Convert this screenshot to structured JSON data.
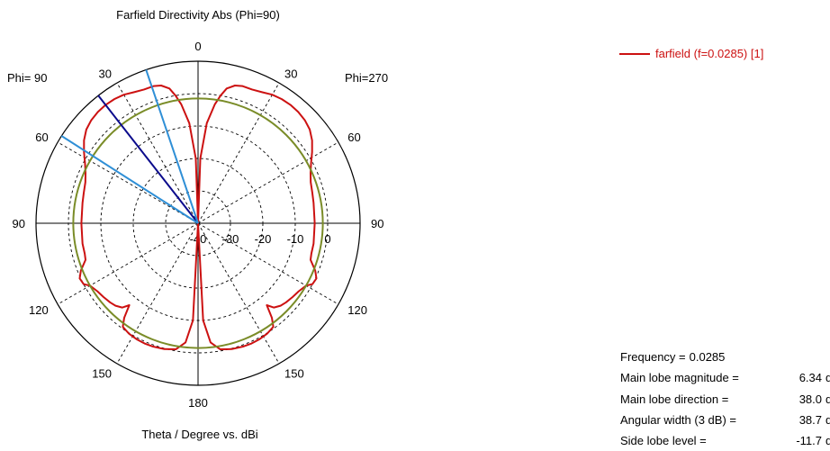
{
  "chart_data": {
    "type": "polar",
    "title": "Farfield Directivity Abs (Phi=90)",
    "xlabel": "Theta / Degree vs. dBi",
    "left_label": "Phi= 90",
    "right_label": "Phi=270",
    "angle_ticks": [
      {
        "angle": 0,
        "label": "0"
      },
      {
        "angle": 30,
        "label": "30"
      },
      {
        "angle": 60,
        "label": "60"
      },
      {
        "angle": 90,
        "label": "90"
      },
      {
        "angle": 120,
        "label": "120"
      },
      {
        "angle": 150,
        "label": "150"
      },
      {
        "angle": 180,
        "label": "180"
      },
      {
        "angle": 210,
        "label": "150"
      },
      {
        "angle": 240,
        "label": "120"
      },
      {
        "angle": 270,
        "label": "90"
      },
      {
        "angle": 300,
        "label": "60"
      },
      {
        "angle": 330,
        "label": "30"
      }
    ],
    "radial_ticks": [
      {
        "value": -40,
        "label": "-40"
      },
      {
        "value": -30,
        "label": "-30"
      },
      {
        "value": -20,
        "label": "-20"
      },
      {
        "value": -10,
        "label": "-10"
      },
      {
        "value": 0,
        "label": "0"
      }
    ],
    "rlim": [
      -40,
      10
    ],
    "grid": true,
    "legend_position": "top-right",
    "series": [
      {
        "name": "farfield (f=0.0285) [1]",
        "color": "#cc1111",
        "points": [
          [
            0,
            -40
          ],
          [
            2,
            -20
          ],
          [
            5,
            -9
          ],
          [
            8,
            -3
          ],
          [
            10,
            0
          ],
          [
            12,
            2.5
          ],
          [
            15,
            4
          ],
          [
            18,
            4.5
          ],
          [
            22,
            4.5
          ],
          [
            26,
            5
          ],
          [
            30,
            5.8
          ],
          [
            34,
            6.2
          ],
          [
            38,
            6.34
          ],
          [
            42,
            6.2
          ],
          [
            46,
            5.8
          ],
          [
            50,
            5
          ],
          [
            54,
            3.5
          ],
          [
            58,
            1.5
          ],
          [
            62,
            -0.5
          ],
          [
            66,
            -2
          ],
          [
            70,
            -3
          ],
          [
            75,
            -3.5
          ],
          [
            80,
            -3.8
          ],
          [
            90,
            -4
          ],
          [
            100,
            -3.8
          ],
          [
            105,
            -3.8
          ],
          [
            108,
            -3.5
          ],
          [
            112,
            -1
          ],
          [
            115,
            0.3
          ],
          [
            118,
            0
          ],
          [
            120,
            -1.5
          ],
          [
            124,
            -2.5
          ],
          [
            128,
            -3
          ],
          [
            132,
            -3.5
          ],
          [
            135,
            -4
          ],
          [
            138,
            -5
          ],
          [
            140,
            -7
          ],
          [
            142,
            -3
          ],
          [
            144,
            -0.5
          ],
          [
            148,
            0.2
          ],
          [
            152,
            0.5
          ],
          [
            156,
            0.6
          ],
          [
            160,
            0.5
          ],
          [
            165,
            0.2
          ],
          [
            170,
            -0.5
          ],
          [
            174,
            -3
          ],
          [
            177,
            -10
          ],
          [
            180,
            -40
          ],
          [
            183,
            -10
          ],
          [
            186,
            -3
          ],
          [
            190,
            -0.5
          ],
          [
            195,
            0.2
          ],
          [
            200,
            0.5
          ],
          [
            204,
            0.6
          ],
          [
            208,
            0.5
          ],
          [
            212,
            0.2
          ],
          [
            216,
            -0.5
          ],
          [
            218,
            -3
          ],
          [
            220,
            -7
          ],
          [
            222,
            -5
          ],
          [
            225,
            -4
          ],
          [
            228,
            -3.5
          ],
          [
            232,
            -3
          ],
          [
            236,
            -2.5
          ],
          [
            240,
            -1.5
          ],
          [
            242,
            0
          ],
          [
            245,
            0.3
          ],
          [
            248,
            -1
          ],
          [
            252,
            -3.5
          ],
          [
            255,
            -3.8
          ],
          [
            260,
            -3.8
          ],
          [
            270,
            -4
          ],
          [
            280,
            -3.8
          ],
          [
            285,
            -3.5
          ],
          [
            290,
            -3
          ],
          [
            294,
            -2
          ],
          [
            298,
            -0.5
          ],
          [
            302,
            1.5
          ],
          [
            306,
            3.5
          ],
          [
            310,
            5
          ],
          [
            314,
            5.8
          ],
          [
            318,
            6.2
          ],
          [
            322,
            6.34
          ],
          [
            326,
            6.2
          ],
          [
            330,
            5.8
          ],
          [
            334,
            5
          ],
          [
            338,
            4.5
          ],
          [
            342,
            4.5
          ],
          [
            345,
            4
          ],
          [
            348,
            2.5
          ],
          [
            350,
            0
          ],
          [
            352,
            -3
          ],
          [
            355,
            -9
          ],
          [
            358,
            -20
          ],
          [
            360,
            -40
          ]
        ]
      },
      {
        "name": "",
        "color": "#7a8c28",
        "points": [
          [
            0,
            -1.5
          ],
          [
            360,
            -1.5
          ]
        ]
      }
    ],
    "markers": [
      {
        "angle": 38.0,
        "color": "#0b0b8c",
        "role": "main-lobe-direction"
      },
      {
        "angle": 18.7,
        "color": "#2f8fd6",
        "role": "3db-beam-edge"
      },
      {
        "angle": 57.4,
        "color": "#2f8fd6",
        "role": "3db-beam-edge"
      }
    ]
  },
  "info": [
    {
      "label": "Frequency =",
      "value": "0.0285",
      "unit": ""
    },
    {
      "label": "Main lobe magnitude =",
      "value": "6.34",
      "unit": "dBi"
    },
    {
      "label": "Main lobe direction =",
      "value": "38.0",
      "unit": "deg."
    },
    {
      "label": "Angular width (3 dB) =",
      "value": "38.7",
      "unit": "deg."
    },
    {
      "label": "Side lobe level =",
      "value": "-11.7",
      "unit": "dB"
    }
  ]
}
